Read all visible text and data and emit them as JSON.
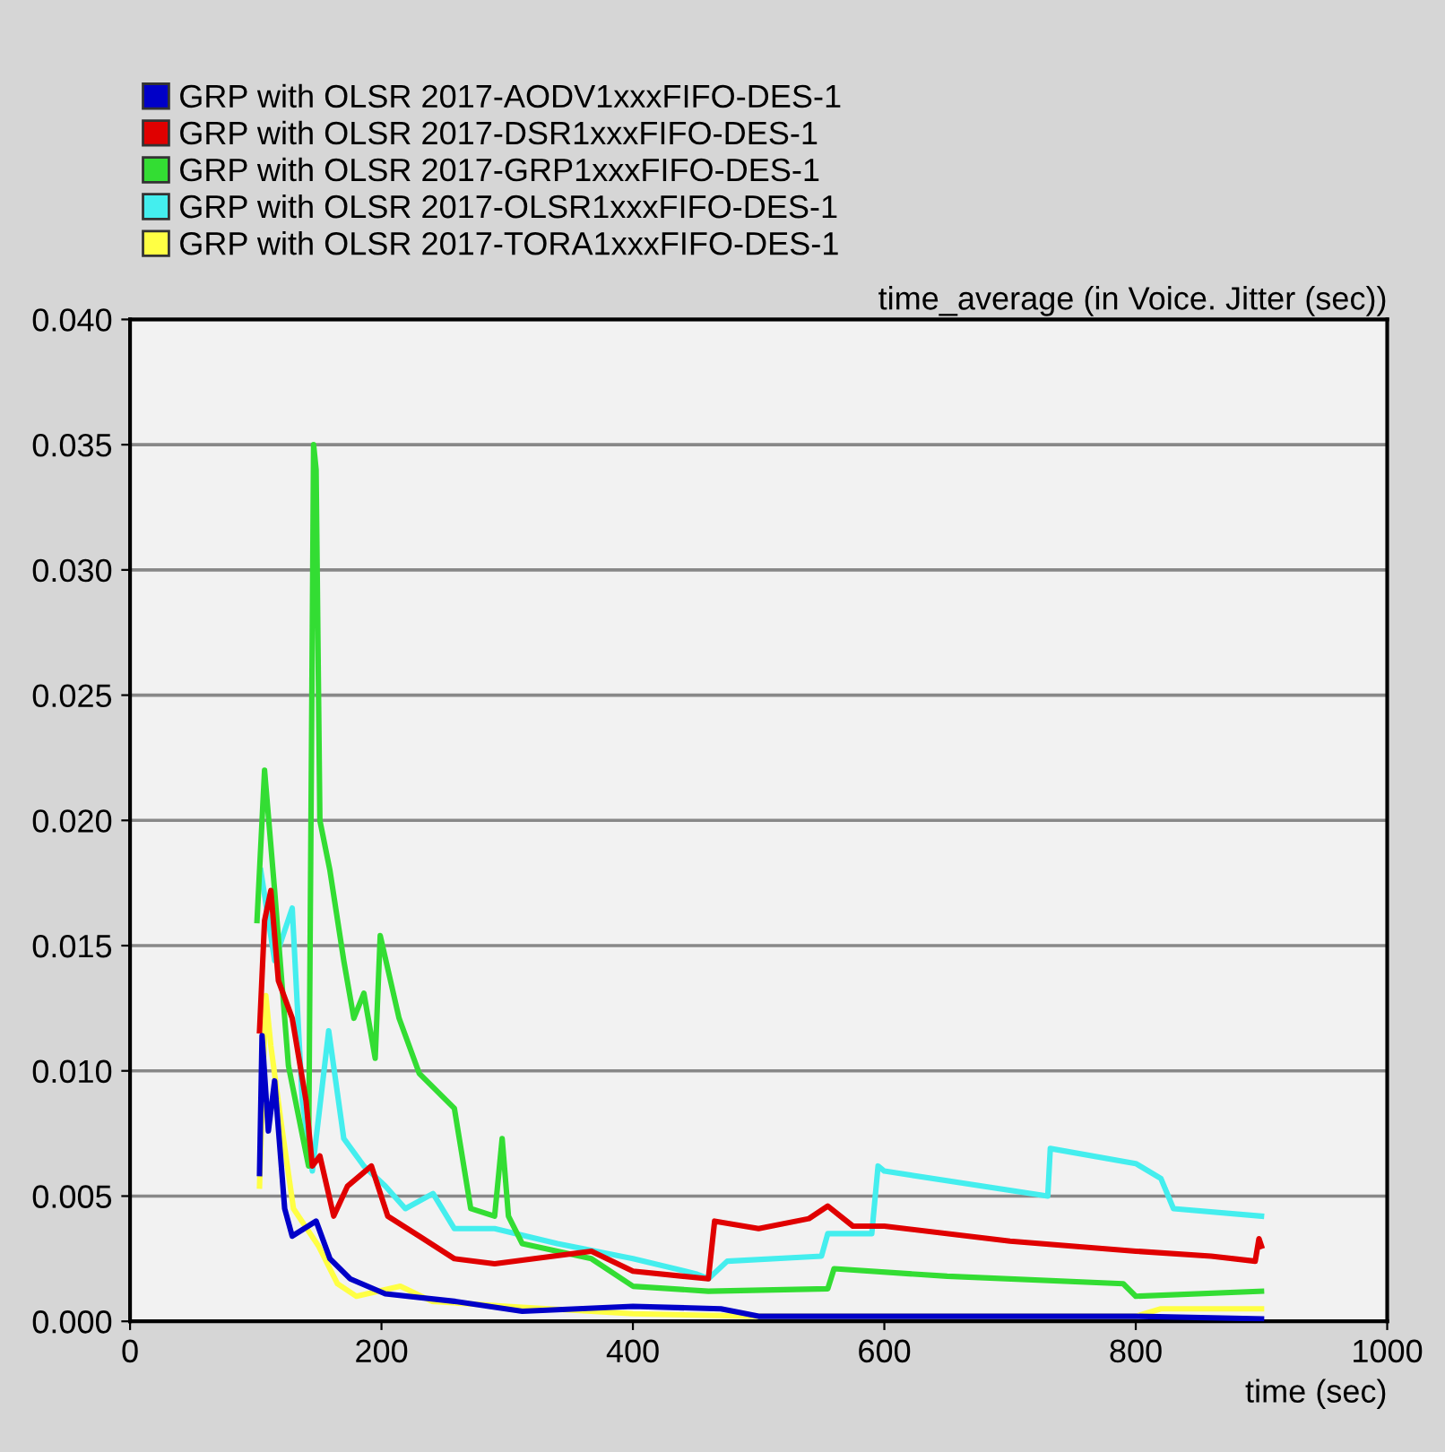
{
  "chart_data": {
    "type": "line",
    "title": "time_average (in Voice. Jitter (sec))",
    "xlabel": "time (sec)",
    "xlim": [
      0,
      1000
    ],
    "xticks": [
      0,
      200,
      400,
      600,
      800,
      1000
    ],
    "ylim": [
      0,
      0.04
    ],
    "yticks": [
      {
        "value": 0,
        "label": "0.000"
      },
      {
        "value": 0.005,
        "label": "0.005"
      },
      {
        "value": 0.01,
        "label": "0.010"
      },
      {
        "value": 0.015,
        "label": "0.015"
      },
      {
        "value": 0.02,
        "label": "0.020"
      },
      {
        "value": 0.025,
        "label": "0.025"
      },
      {
        "value": 0.03,
        "label": "0.030"
      },
      {
        "value": 0.035,
        "label": "0.035"
      },
      {
        "value": 0.04,
        "label": "0.040"
      }
    ],
    "grid": "y",
    "legend": "top left",
    "marker": "none",
    "line_style": "solid",
    "series": [
      {
        "name": "GRP with OLSR 2017-AODV1xxxFIFO-DES-1",
        "color": "#0000c8",
        "x": [
          103,
          105,
          110,
          115,
          123,
          129,
          148,
          159,
          175,
          203,
          258,
          312,
          400,
          470,
          500,
          800,
          900
        ],
        "values": [
          0.0059,
          0.0114,
          0.0076,
          0.0096,
          0.0045,
          0.0034,
          0.004,
          0.0025,
          0.0017,
          0.0011,
          0.0008,
          0.0004,
          0.0006,
          0.0005,
          0.0002,
          0.0002,
          0.0001
        ]
      },
      {
        "name": "GRP with OLSR 2017-DSR1xxxFIFO-DES-1",
        "color": "#e00000",
        "x": [
          103,
          107,
          112,
          118,
          129,
          140,
          145,
          151,
          162,
          173,
          192,
          205,
          230,
          258,
          290,
          367,
          400,
          460,
          465,
          500,
          540,
          555,
          575,
          600,
          700,
          800,
          860,
          895,
          898,
          900
        ],
        "values": [
          0.0116,
          0.016,
          0.0172,
          0.0136,
          0.0121,
          0.0088,
          0.0062,
          0.0066,
          0.0042,
          0.0054,
          0.0062,
          0.0042,
          0.0034,
          0.0025,
          0.0023,
          0.0028,
          0.002,
          0.0017,
          0.004,
          0.0037,
          0.0041,
          0.0046,
          0.0038,
          0.0038,
          0.0032,
          0.0028,
          0.0026,
          0.0024,
          0.0033,
          0.003
        ]
      },
      {
        "name": "GRP with OLSR 2017-GRP1xxxFIFO-DES-1",
        "color": "#33dd33",
        "x": [
          101,
          107,
          115,
          126,
          142,
          146,
          148,
          151,
          159,
          170,
          178,
          186,
          195,
          199,
          214,
          230,
          258,
          271,
          290,
          296,
          301,
          312,
          367,
          400,
          460,
          555,
          560,
          650,
          790,
          800,
          900
        ],
        "values": [
          0.016,
          0.022,
          0.0172,
          0.0102,
          0.0062,
          0.035,
          0.034,
          0.02,
          0.018,
          0.0144,
          0.0121,
          0.0131,
          0.0105,
          0.0154,
          0.0121,
          0.0099,
          0.0085,
          0.0045,
          0.0042,
          0.0073,
          0.0042,
          0.0031,
          0.0025,
          0.0014,
          0.0012,
          0.0013,
          0.0021,
          0.0018,
          0.0015,
          0.001,
          0.0012
        ]
      },
      {
        "name": "GRP with OLSR 2017-OLSR1xxxFIFO-DES-1",
        "color": "#44eeee",
        "x": [
          104,
          115,
          129,
          137,
          145,
          158,
          170,
          186,
          203,
          219,
          241,
          258,
          290,
          340,
          400,
          450,
          460,
          475,
          550,
          555,
          590,
          595,
          600,
          730,
          732,
          800,
          820,
          830,
          900
        ],
        "values": [
          0.018,
          0.0144,
          0.0165,
          0.0088,
          0.006,
          0.0116,
          0.0073,
          0.0062,
          0.0054,
          0.0045,
          0.0051,
          0.0037,
          0.0037,
          0.0031,
          0.0025,
          0.0019,
          0.0017,
          0.0024,
          0.0026,
          0.0035,
          0.0035,
          0.0062,
          0.006,
          0.005,
          0.0069,
          0.0063,
          0.0057,
          0.0045,
          0.0042
        ]
      },
      {
        "name": "GRP with OLSR 2017-TORA1xxxFIFO-DES-1",
        "color": "#ffff44",
        "x": [
          103,
          108,
          112,
          120,
          130,
          150,
          165,
          180,
          215,
          240,
          300,
          400,
          500,
          800,
          820,
          900
        ],
        "values": [
          0.0054,
          0.013,
          0.011,
          0.008,
          0.0045,
          0.003,
          0.0015,
          0.001,
          0.0014,
          0.0008,
          0.0006,
          0.0003,
          0.0002,
          0.0002,
          0.0005,
          0.0005
        ]
      }
    ]
  }
}
